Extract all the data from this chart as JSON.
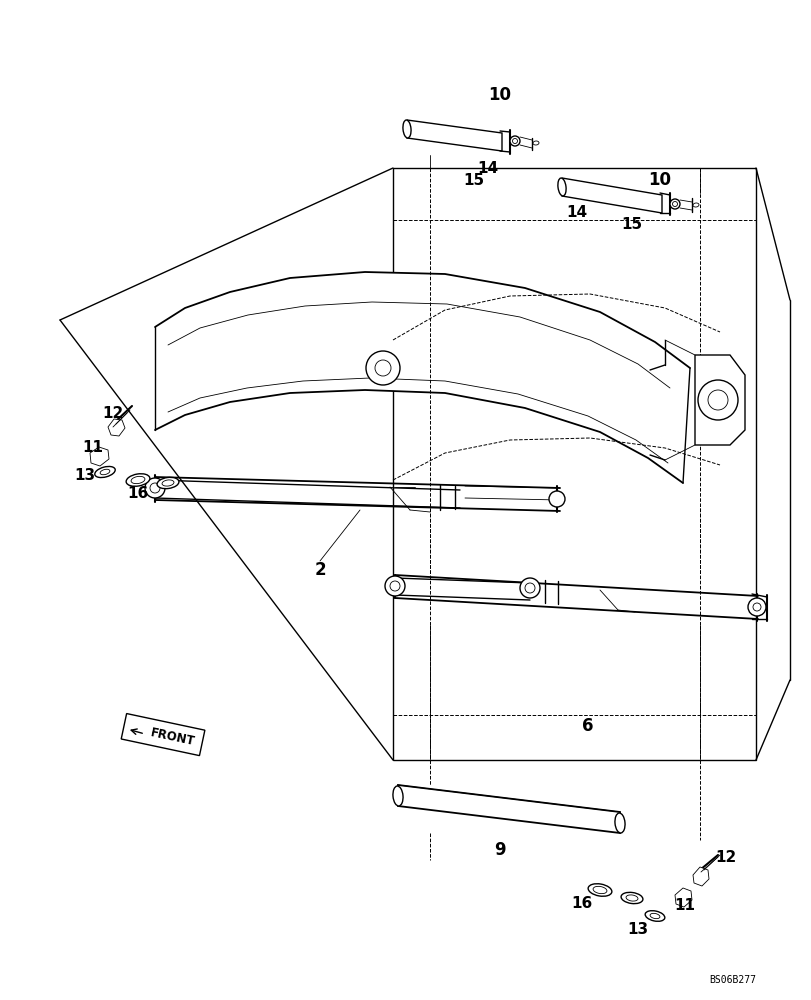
{
  "background_color": "#ffffff",
  "line_color": "#000000",
  "lw": 1.0,
  "tlw": 0.6,
  "dlw": 0.7,
  "figure_size": [
    8.12,
    10.0
  ],
  "dpi": 100,
  "watermark": "BS06B277"
}
